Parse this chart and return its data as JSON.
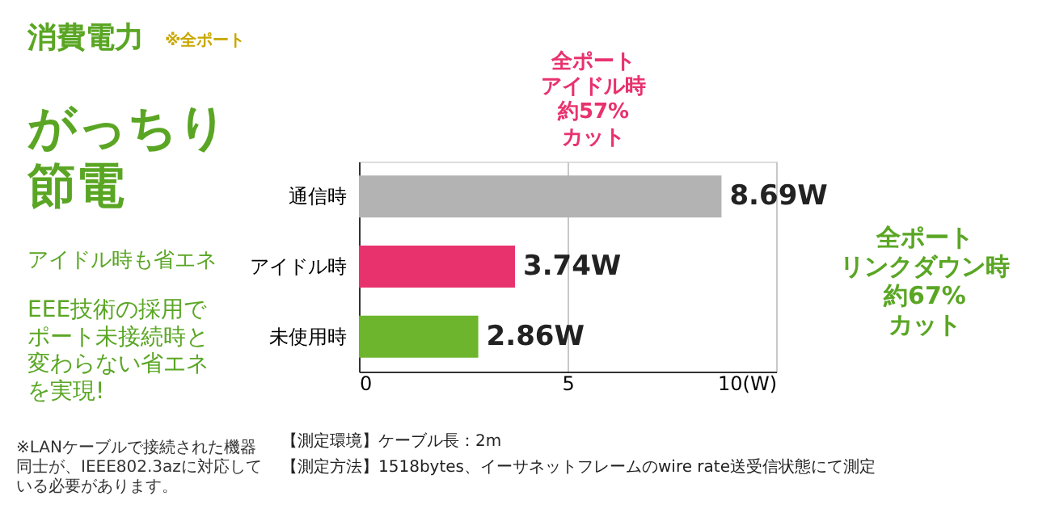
{
  "chart_data": {
    "type": "bar",
    "orientation": "horizontal",
    "title": "消費電力",
    "subtitle": "※全ポート",
    "categories": [
      "通信時",
      "アイドル時",
      "未使用時"
    ],
    "values": [
      8.69,
      3.74,
      2.86
    ],
    "colors": [
      "#b3b3b3",
      "#e8326e",
      "#6cb52d"
    ],
    "value_labels": [
      "8.69W",
      "3.74W",
      "2.86W"
    ],
    "xlim": [
      0,
      10
    ],
    "xticks": [
      0,
      5,
      {
        "value": 10,
        "label": "10(W)"
      }
    ],
    "grid": "x",
    "annotations": [
      "がっちり節電",
      "アイドル時も省エネ",
      "EEE技術の採用でポート未接続時と変わらない省エネを実現!",
      "※LANケーブルで接続された機器同士が、IEEE802.3azに対応している必要があります。",
      "全ポートアイドル時約57%カット",
      "全ポートリンクダウン時約67%カット",
      "【測定環境】ケーブル長：2m",
      "【測定方法】1518bytes、イーサネットフレームのwire rate送受信状態にて測定"
    ]
  }
}
